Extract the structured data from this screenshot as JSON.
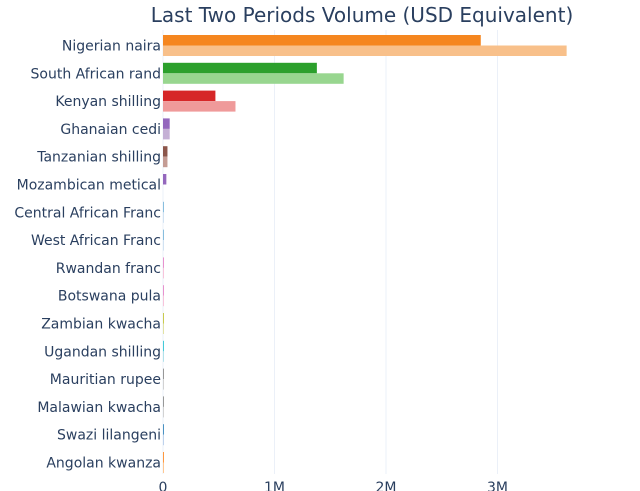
{
  "chart_data": {
    "type": "bar",
    "orientation": "horizontal",
    "title": "Last Two Periods Volume (USD Equivalent)",
    "xlabel": "",
    "ylabel": "",
    "xlim": [
      0,
      3.6
    ],
    "x_unit": "M (millions USD)",
    "x_ticks": [
      0,
      1,
      2,
      3
    ],
    "x_tick_labels": [
      "0",
      "1M",
      "2M",
      "3M"
    ],
    "grid": true,
    "legend": "none",
    "categories": [
      "Nigerian naira",
      "South African rand",
      "Kenyan shilling",
      "Ghanaian cedi",
      "Tanzanian shilling",
      "Mozambican metical",
      "Central African Franc",
      "West African Franc",
      "Rwandan franc",
      "Botswana pula",
      "Zambian kwacha",
      "Ugandan shilling",
      "Mauritian rupee",
      "Malawian kwacha",
      "Swazi lilangeni",
      "Angolan kwanza"
    ],
    "series": [
      {
        "values": [
          2.85,
          1.38,
          0.47,
          0.06,
          0.04,
          0.03,
          0.005,
          0.004,
          0.003,
          0.003,
          0.002,
          0.002,
          0.001,
          0.001,
          0.001,
          0.001
        ]
      },
      {
        "values": [
          3.62,
          1.62,
          0.65,
          0.06,
          0.04,
          0.0,
          0.005,
          0.004,
          0.003,
          0.004,
          0.002,
          0.002,
          0.001,
          0.001,
          0.001,
          0.001
        ]
      }
    ],
    "colors": [
      [
        "#f5861f",
        "#f8c08a"
      ],
      [
        "#2ca02c",
        "#98d68f"
      ],
      [
        "#d62728",
        "#ef9a9a"
      ],
      [
        "#9467bd",
        "#c5b0d5"
      ],
      [
        "#8c564b",
        "#c49c94"
      ],
      [
        "#9467bd",
        "#c5b0d5"
      ],
      [
        "#6baed6",
        "#c6dbef"
      ],
      [
        "#6baed6",
        "#c6dbef"
      ],
      [
        "#e377c2",
        "#f7b6d2"
      ],
      [
        "#e377c2",
        "#f7b6d2"
      ],
      [
        "#bcbd22",
        "#dbdb8d"
      ],
      [
        "#17becf",
        "#9edae5"
      ],
      [
        "#7f7f7f",
        "#c7c7c7"
      ],
      [
        "#7f7f7f",
        "#c7c7c7"
      ],
      [
        "#1f77b4",
        "#aec7e8"
      ],
      [
        "#ff7f0e",
        "#ffbb78"
      ]
    ]
  }
}
